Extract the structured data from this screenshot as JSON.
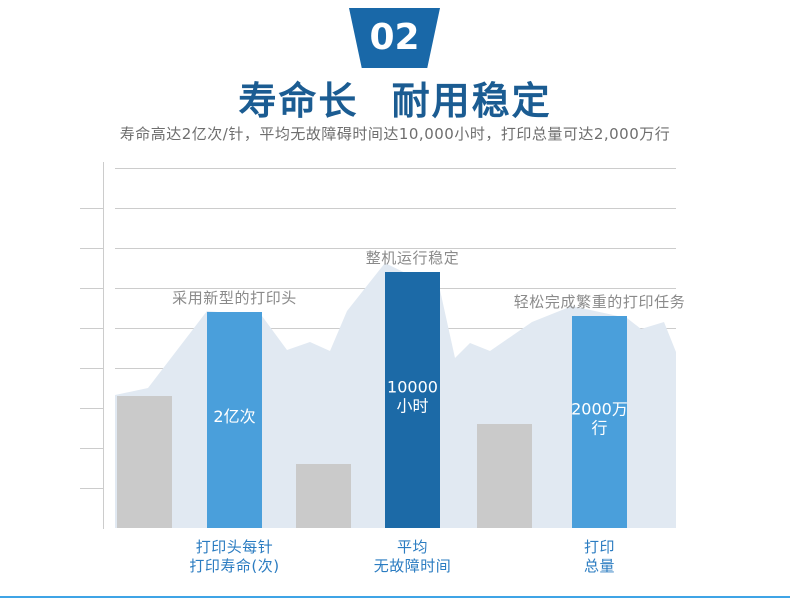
{
  "badge": {
    "number": "02"
  },
  "header": {
    "title": "寿命长 耐用稳定",
    "subtitle": "寿命高达2亿次/针，平均无故障碍时间达10,000小时，打印总量可达2,000万行"
  },
  "colors": {
    "badge": "#1968a8",
    "title": "#1b5c92",
    "subtitle": "#6e6e6e",
    "annotation": "#8a8a8a",
    "category_label": "#2b7cc1",
    "value_label": "#ffffff",
    "gridline": "#cccccc",
    "mountain": "#e1e9f2",
    "bottom_rule": "#3fa4e6"
  },
  "chart_data": {
    "type": "bar",
    "categories": [
      [],
      [
        "打印头每针",
        "打印寿命(次)"
      ],
      [],
      [
        "平均",
        "无故障时间"
      ],
      [],
      [
        "打印",
        "总量"
      ]
    ],
    "values": [
      3.3,
      5.4,
      1.6,
      6.4,
      2.6,
      5.3
    ],
    "bar_colors": [
      "#cacaca",
      "#4a9fdb",
      "#cacaca",
      "#1c6aa7",
      "#cacaca",
      "#4a9fdb"
    ],
    "value_labels": [
      [],
      [
        "2亿次"
      ],
      [],
      [
        "10000",
        "小时"
      ],
      [],
      [
        "2000万",
        "行"
      ]
    ],
    "annotations": [
      "",
      "采用新型的打印头",
      "",
      "整机运行稳定",
      "",
      "轻松完成繁重的打印任务"
    ],
    "xlabel": "",
    "ylabel": "",
    "ylim": [
      0,
      9
    ],
    "grid": true,
    "legend": "none"
  }
}
